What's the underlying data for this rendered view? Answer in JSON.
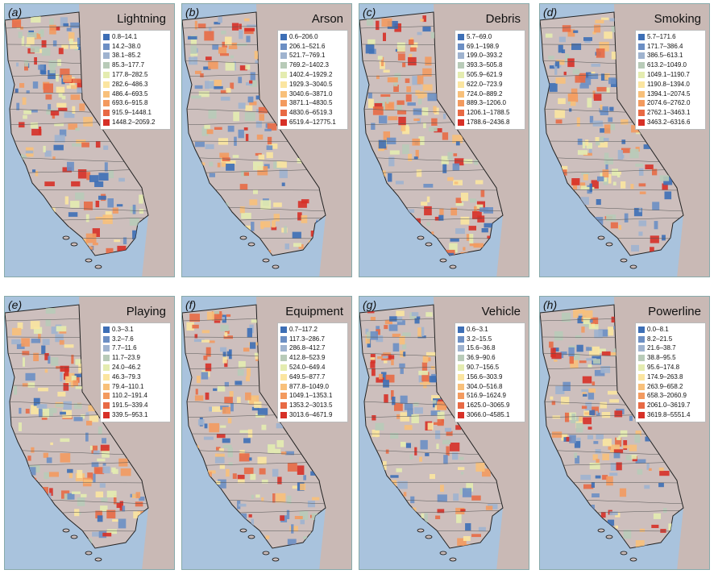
{
  "colors": [
    "#3d6fb6",
    "#6c8fc4",
    "#9fb3cf",
    "#b8cbb8",
    "#e4ecb0",
    "#fbe5a0",
    "#f8c07a",
    "#f39a5f",
    "#e86a45",
    "#d73027"
  ],
  "panels": [
    {
      "letter": "(a)",
      "title": "Lightning",
      "ranges": [
        "0.8–14.1",
        "14.2–38.0",
        "38.1–85.2",
        "85.3–177.7",
        "177.8–282.5",
        "282.6–486.3",
        "486.4–693.5",
        "693.6–915.8",
        "915.9–1448.1",
        "1448.2–2059.2"
      ]
    },
    {
      "letter": "(b)",
      "title": "Arson",
      "ranges": [
        "0.6–206.0",
        "206.1–521.6",
        "521.7–769.1",
        "769.2–1402.3",
        "1402.4–1929.2",
        "1929.3–3040.5",
        "3040.6–3871.0",
        "3871.1–4830.5",
        "4830.6–6519.3",
        "6519.4–12775.1"
      ]
    },
    {
      "letter": "(c)",
      "title": "Debris",
      "ranges": [
        "5.7–69.0",
        "69.1–198.9",
        "199.0–393.2",
        "393.3–505.8",
        "505.9–621.9",
        "622.0–723.9",
        "724.0–889.2",
        "889.3–1206.0",
        "1206.1–1788.5",
        "1788.6–2436.8"
      ]
    },
    {
      "letter": "(d)",
      "title": "Smoking",
      "ranges": [
        "5.7–171.6",
        "171.7–386.4",
        "386.5–613.1",
        "613.2–1049.0",
        "1049.1–1190.7",
        "1190.8–1394.0",
        "1394.1–2074.5",
        "2074.6–2762.0",
        "2762.1–3463.1",
        "3463.2–6316.6"
      ]
    },
    {
      "letter": "(e)",
      "title": "Playing",
      "ranges": [
        "0.3–3.1",
        "3.2–7.6",
        "7.7–11.6",
        "11.7–23.9",
        "24.0–46.2",
        "46.3–79.3",
        "79.4–110.1",
        "110.2–191.4",
        "191.5–339.4",
        "339.5–953.1"
      ]
    },
    {
      "letter": "(f)",
      "title": "Equipment",
      "ranges": [
        "0.7–117.2",
        "117.3–286.7",
        "286.8–412.7",
        "412.8–523.9",
        "524.0–649.4",
        "649.5–877.7",
        "877.8–1049.0",
        "1049.1–1353.1",
        "1353.2–3013.5",
        "3013.6–4671.9"
      ]
    },
    {
      "letter": "(g)",
      "title": "Vehicle",
      "ranges": [
        "0.6–3.1",
        "3.2–15.5",
        "15.6–36.8",
        "36.9–90.6",
        "90.7–156.5",
        "156.6–303.9",
        "304.0–516.8",
        "516.9–1624.9",
        "1625.0–3065.9",
        "3066.0–4585.1"
      ]
    },
    {
      "letter": "(h)",
      "title": "Powerline",
      "ranges": [
        "0.0–8.1",
        "8.2–21.5",
        "21.6–38.7",
        "38.8–95.5",
        "95.6–174.8",
        "174.9–263.8",
        "263.9–658.2",
        "658.3–2060.9",
        "2061.0–3619.7",
        "3619.8–5551.4"
      ]
    }
  ]
}
